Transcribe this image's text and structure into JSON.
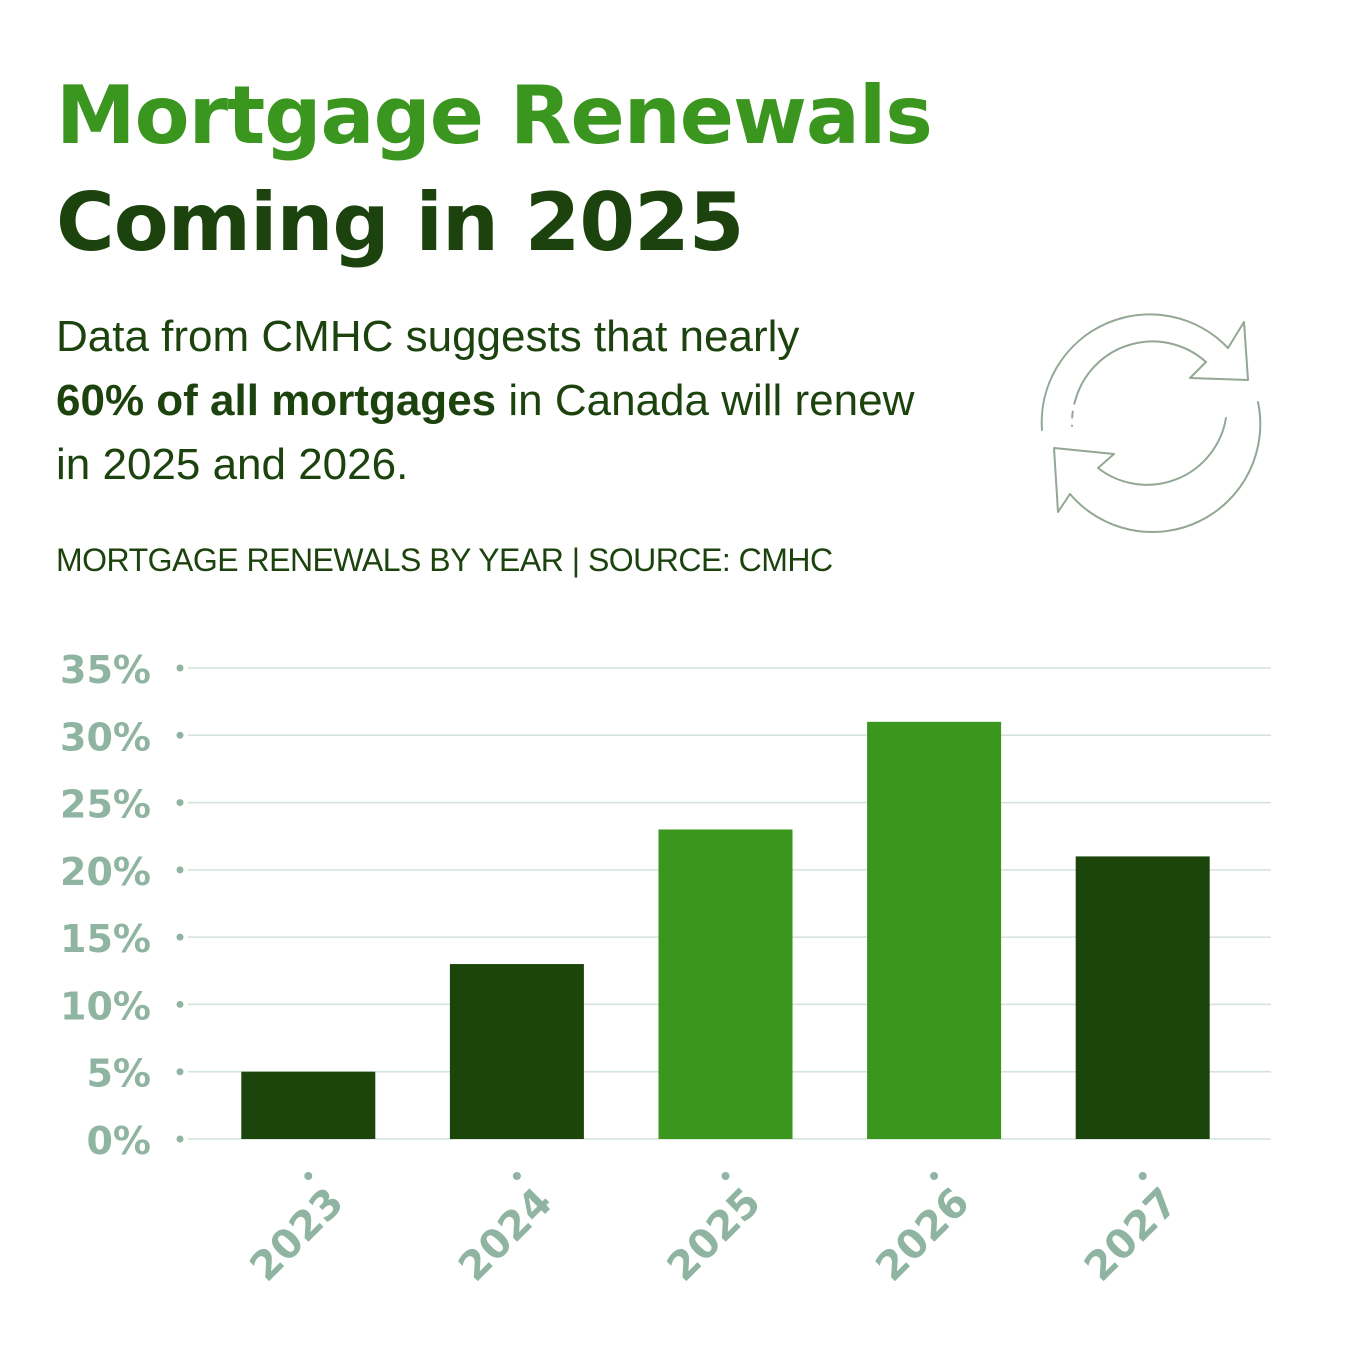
{
  "header": {
    "title_line1": "Mortgage Renewals",
    "title_line2": "Coming in 2025",
    "intro_part1": "Data from CMHC suggests that nearly",
    "intro_bold": "60% of all mortgages",
    "intro_part2": "in Canada will renew in 2025 and 2026."
  },
  "caption": "MORTGAGE RENEWALS BY YEAR | SOURCE: CMHC",
  "icon": "refresh-cycle-icon",
  "colors": {
    "title_light": "#3a961e",
    "title_dark": "#1c430d",
    "text": "#1c430d",
    "bar_dark": "#1c450c",
    "bar_light": "#3a961c",
    "axis_label": "#8fb4a2",
    "grid": "#d3e2da",
    "icon": "#92a794"
  },
  "chart_data": {
    "type": "bar",
    "title": "MORTGAGE RENEWALS BY YEAR | SOURCE: CMHC",
    "categories": [
      "2023",
      "2024",
      "2025",
      "2026",
      "2027"
    ],
    "values": [
      5,
      13,
      23,
      31,
      21
    ],
    "highlighted": [
      false,
      false,
      true,
      true,
      false
    ],
    "yticks": [
      "0%",
      "5%",
      "10%",
      "15%",
      "20%",
      "25%",
      "30%",
      "35%"
    ],
    "ylim": [
      0,
      35
    ],
    "grid": true,
    "xlabel": "",
    "ylabel": ""
  }
}
